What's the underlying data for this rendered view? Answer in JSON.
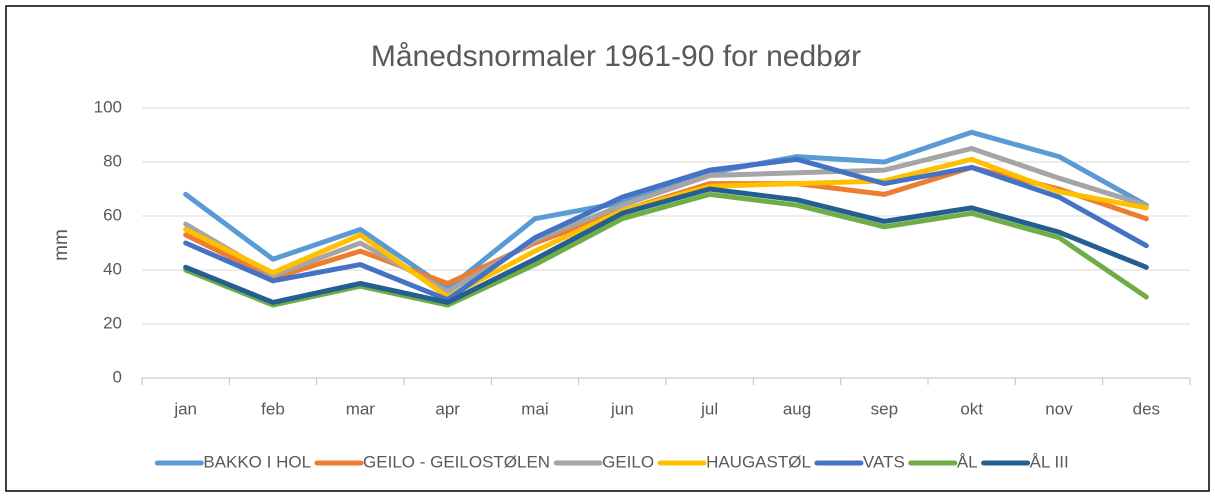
{
  "chart_data": {
    "type": "line",
    "title": "Månedsnormaler 1961-90 for nedbør",
    "y_label": "mm",
    "categories": [
      "jan",
      "feb",
      "mar",
      "apr",
      "mai",
      "jun",
      "jul",
      "aug",
      "sep",
      "okt",
      "nov",
      "des"
    ],
    "series": [
      {
        "name": "BAKKO I HOL",
        "color": "#5b9bd5",
        "values": [
          68,
          44,
          55,
          33,
          59,
          65,
          76,
          82,
          80,
          91,
          82,
          64
        ]
      },
      {
        "name": "GEILO - GEILOSTØLEN",
        "color": "#ed7d31",
        "values": [
          53,
          37,
          47,
          35,
          50,
          62,
          72,
          72,
          68,
          78,
          70,
          59
        ]
      },
      {
        "name": "GEILO",
        "color": "#a5a5a5",
        "values": [
          57,
          38,
          50,
          32,
          51,
          64,
          75,
          76,
          77,
          85,
          74,
          64
        ]
      },
      {
        "name": "HAUGASTØL",
        "color": "#ffc000",
        "values": [
          55,
          39,
          53,
          30,
          47,
          62,
          71,
          72,
          73,
          81,
          69,
          63
        ]
      },
      {
        "name": "VATS",
        "color": "#4472c4",
        "values": [
          50,
          36,
          42,
          29,
          52,
          67,
          77,
          81,
          72,
          78,
          67,
          49
        ]
      },
      {
        "name": "ÅL",
        "color": "#70ad47",
        "values": [
          40,
          27,
          34,
          27,
          42,
          59,
          68,
          64,
          56,
          61,
          52,
          30
        ]
      },
      {
        "name": "ÅL III",
        "color": "#255e91",
        "values": [
          41,
          28,
          35,
          28,
          44,
          61,
          70,
          66,
          58,
          63,
          54,
          41
        ]
      }
    ],
    "ylim": [
      0,
      100
    ],
    "yticks": [
      0,
      20,
      40,
      60,
      80,
      100
    ],
    "grid": true,
    "legend": "bottom"
  }
}
